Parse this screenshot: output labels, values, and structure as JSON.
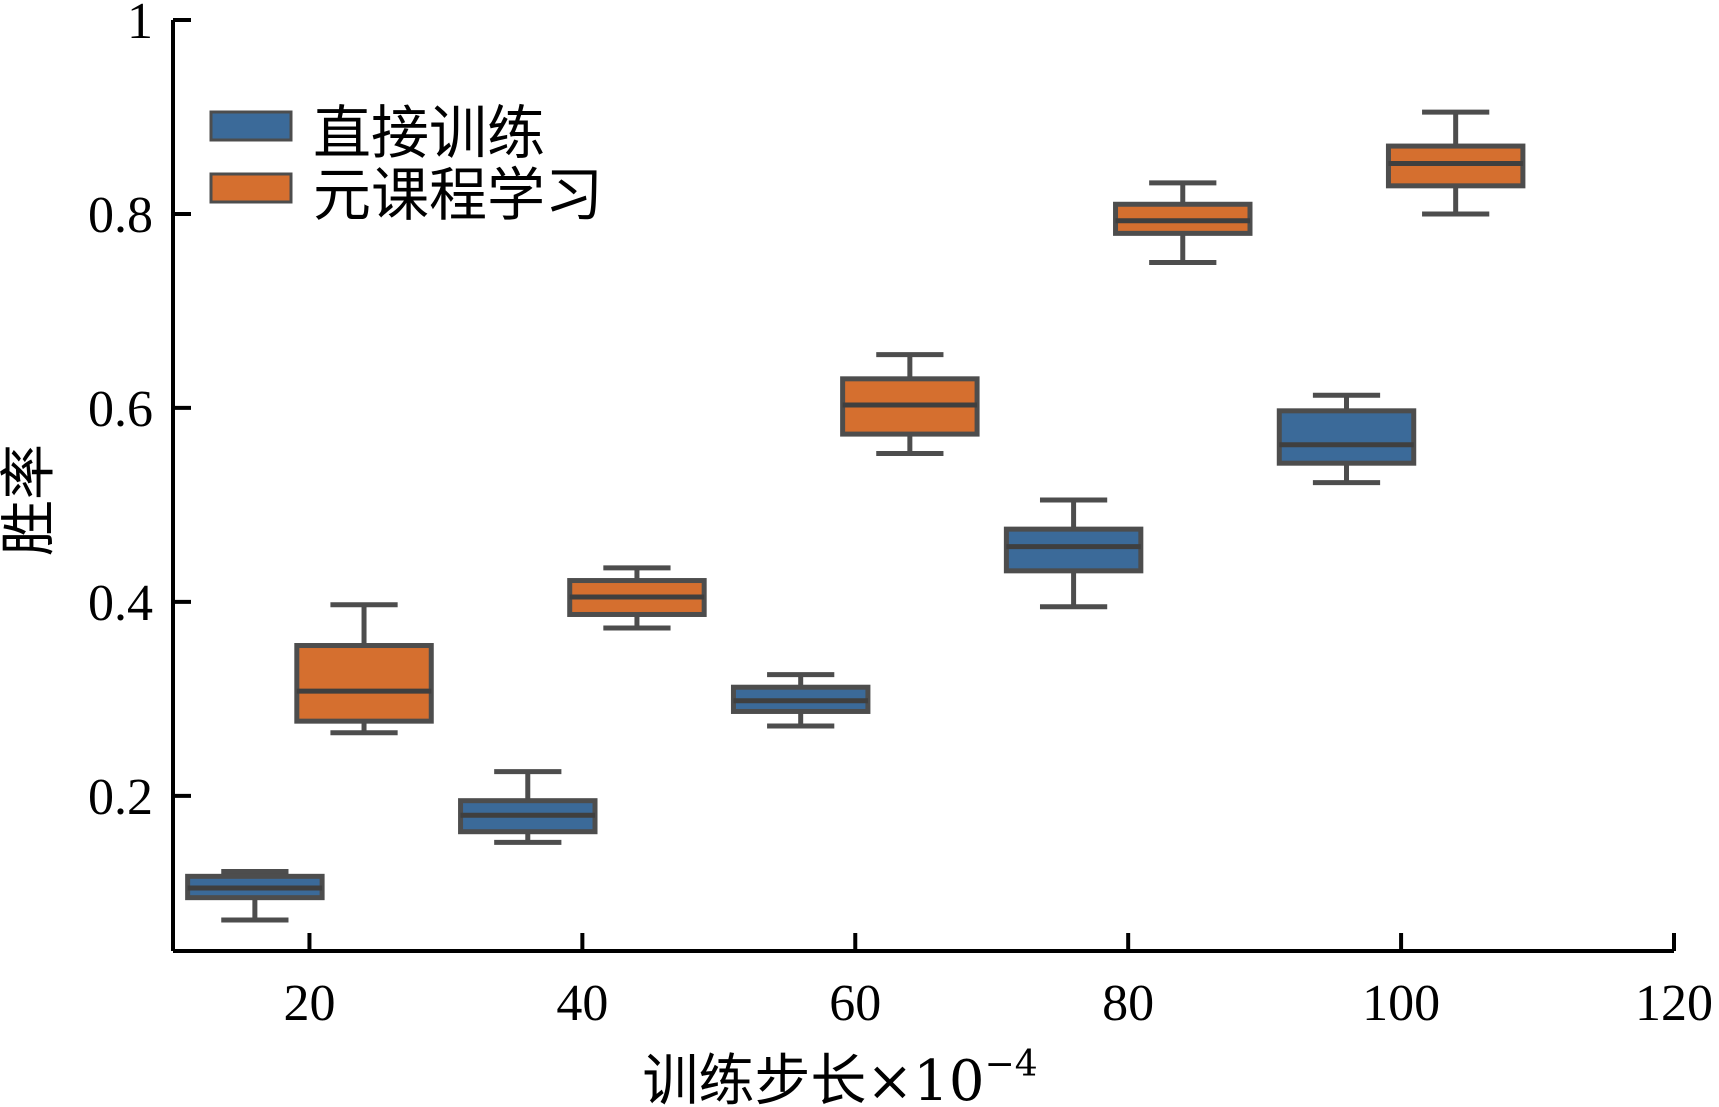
{
  "chart_data": {
    "type": "box",
    "x_ticks": [
      20,
      40,
      60,
      80,
      100,
      120
    ],
    "xlim": [
      10,
      120
    ],
    "ylim": [
      0.04,
      1.0
    ],
    "y_ticks": [
      0.2,
      0.4,
      0.6,
      0.8,
      1.0
    ],
    "y_tick_labels": [
      "0.2",
      "0.4",
      "0.6",
      "0.8",
      "1"
    ],
    "xlabel": "训练步长×10",
    "xlabel_exponent": "−4",
    "ylabel": "胜率",
    "legend_position": "top-left",
    "grid": false,
    "series": [
      {
        "name": "直接训练",
        "color": "#3b6a99",
        "boxes": [
          {
            "x": 16,
            "min": 0.072,
            "q1": 0.095,
            "median": 0.105,
            "q3": 0.117,
            "max": 0.122
          },
          {
            "x": 36,
            "min": 0.152,
            "q1": 0.163,
            "median": 0.18,
            "q3": 0.195,
            "max": 0.225
          },
          {
            "x": 56,
            "min": 0.272,
            "q1": 0.287,
            "median": 0.298,
            "q3": 0.312,
            "max": 0.325
          },
          {
            "x": 76,
            "min": 0.395,
            "q1": 0.432,
            "median": 0.457,
            "q3": 0.475,
            "max": 0.505
          },
          {
            "x": 96,
            "min": 0.523,
            "q1": 0.543,
            "median": 0.562,
            "q3": 0.597,
            "max": 0.613
          }
        ]
      },
      {
        "name": "元课程学习",
        "color": "#d56f2f",
        "boxes": [
          {
            "x": 24,
            "min": 0.265,
            "q1": 0.277,
            "median": 0.308,
            "q3": 0.355,
            "max": 0.397
          },
          {
            "x": 44,
            "min": 0.373,
            "q1": 0.387,
            "median": 0.405,
            "q3": 0.422,
            "max": 0.435
          },
          {
            "x": 64,
            "min": 0.553,
            "q1": 0.573,
            "median": 0.603,
            "q3": 0.63,
            "max": 0.655
          },
          {
            "x": 84,
            "min": 0.75,
            "q1": 0.78,
            "median": 0.793,
            "q3": 0.81,
            "max": 0.832
          },
          {
            "x": 104,
            "min": 0.8,
            "q1": 0.829,
            "median": 0.852,
            "q3": 0.87,
            "max": 0.905
          }
        ]
      }
    ]
  }
}
